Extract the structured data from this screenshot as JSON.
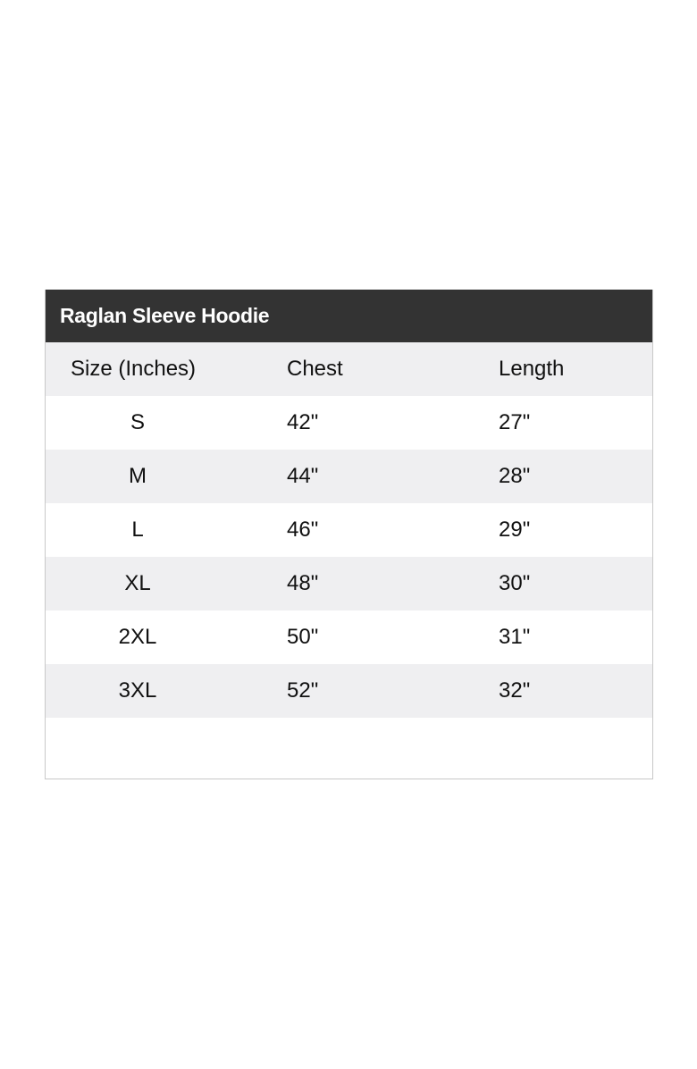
{
  "table": {
    "title": "Raglan Sleeve Hoodie",
    "headers": [
      "Size (Inches)",
      "Chest",
      "Length"
    ],
    "rows": [
      [
        "S",
        "42\"",
        "27\""
      ],
      [
        "M",
        "44\"",
        "28\""
      ],
      [
        "L",
        "46\"",
        "29\""
      ],
      [
        "XL",
        "48\"",
        "30\""
      ],
      [
        "2XL",
        "50\"",
        "31\""
      ],
      [
        "3XL",
        "52\"",
        "32\""
      ]
    ]
  },
  "colors": {
    "title_bar": "#333333",
    "alt_row": "#efeff1",
    "border": "#c8c8c8"
  }
}
